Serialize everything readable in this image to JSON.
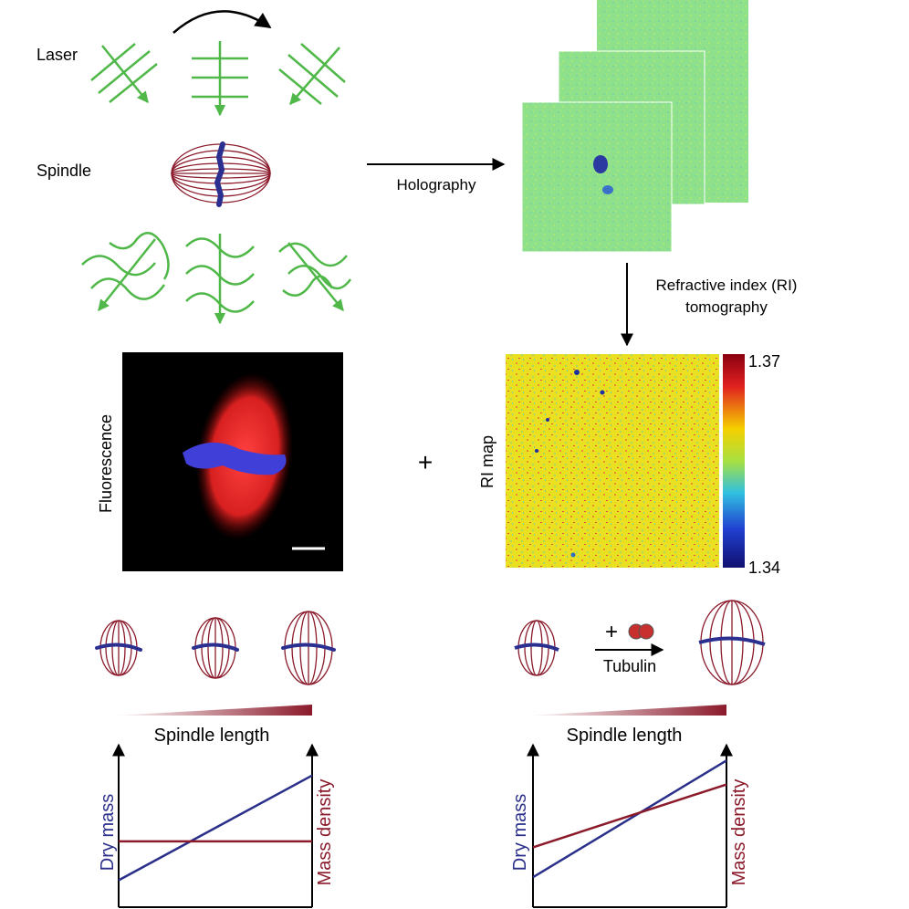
{
  "labels": {
    "laser": "Laser",
    "spindle": "Spindle",
    "holography": "Holography",
    "ri_tomography_line1": "Refractive index (RI)",
    "ri_tomography_line2": "tomography",
    "fluorescence": "Fluorescence",
    "plus": "+",
    "ri_map": "RI map",
    "tubulin_plus": "+",
    "tubulin": "Tubulin"
  },
  "colorbar": {
    "max": "1.37",
    "min": "1.34"
  },
  "plots": [
    {
      "xlabel": "Spindle length",
      "ylabel_left": "Dry mass",
      "ylabel_right": "Mass density",
      "dry_mass": [
        0.18,
        0.88
      ],
      "mass_density": [
        0.44,
        0.44
      ]
    },
    {
      "xlabel": "Spindle length",
      "ylabel_left": "Dry mass",
      "ylabel_right": "Mass density",
      "dry_mass": [
        0.2,
        0.98
      ],
      "mass_density": [
        0.4,
        0.82
      ]
    }
  ],
  "colors": {
    "laser_green": "#4fb848",
    "spindle_red": "#8b1a2b",
    "chromosome_blue": "#2b2f8f",
    "dry_mass_blue": "#2a2f8a",
    "mass_density_red": "#8b1a2b"
  }
}
